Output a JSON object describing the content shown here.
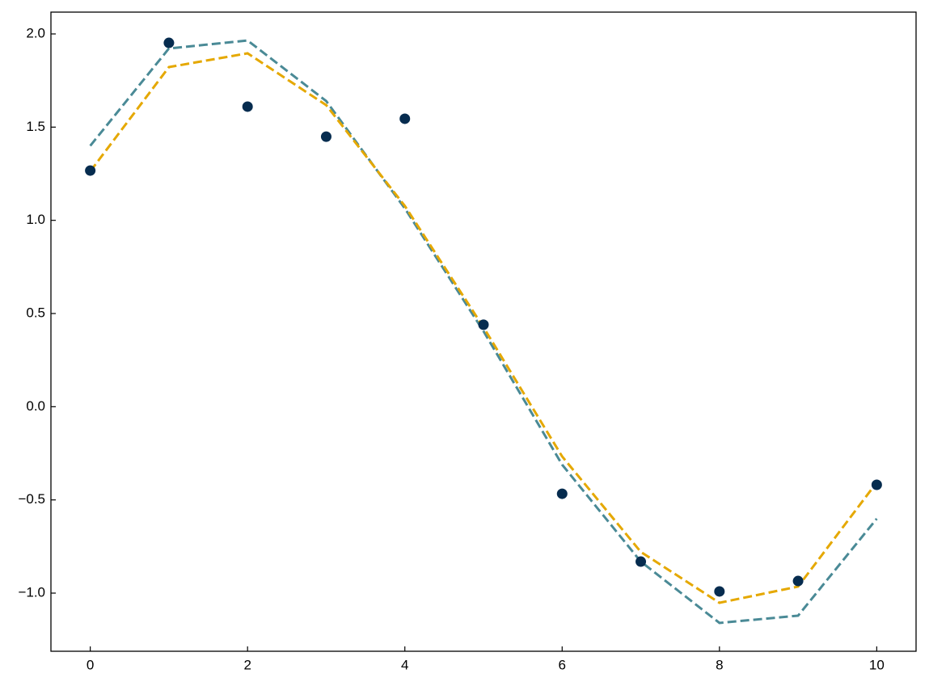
{
  "chart_data": {
    "type": "line",
    "x": [
      0,
      1,
      2,
      3,
      4,
      5,
      6,
      7,
      8,
      9,
      10
    ],
    "series": [
      {
        "color": "#062c4f",
        "mode": "markers",
        "values": [
          1.267,
          1.952,
          1.61,
          1.449,
          1.545,
          0.44,
          -0.467,
          -0.831,
          -0.991,
          -0.935,
          -0.419
        ]
      },
      {
        "color": "#4a8a96",
        "mode": "dashed",
        "values": [
          1.4,
          1.922,
          1.965,
          1.64,
          1.064,
          0.405,
          -0.311,
          -0.831,
          -1.16,
          -1.121,
          -0.601
        ]
      },
      {
        "color": "#e5a800",
        "mode": "dashed",
        "values": [
          1.263,
          1.822,
          1.896,
          1.618,
          1.077,
          0.426,
          -0.267,
          -0.779,
          -1.052,
          -0.965,
          -0.406
        ]
      }
    ],
    "xlim": [
      -0.5,
      10.5
    ],
    "xticks": [
      0,
      2,
      4,
      6,
      8,
      10
    ],
    "ylim": [
      -1.312,
      2.117
    ],
    "yticks": [
      {
        "value": -1.0,
        "label": "−1.0"
      },
      {
        "value": -0.5,
        "label": "−0.5"
      },
      {
        "value": 0,
        "label": "0.0"
      },
      0.5,
      {
        "value": 1,
        "label": "1.0"
      },
      1.5,
      {
        "value": 2,
        "label": "2.0"
      }
    ],
    "grid": false
  }
}
